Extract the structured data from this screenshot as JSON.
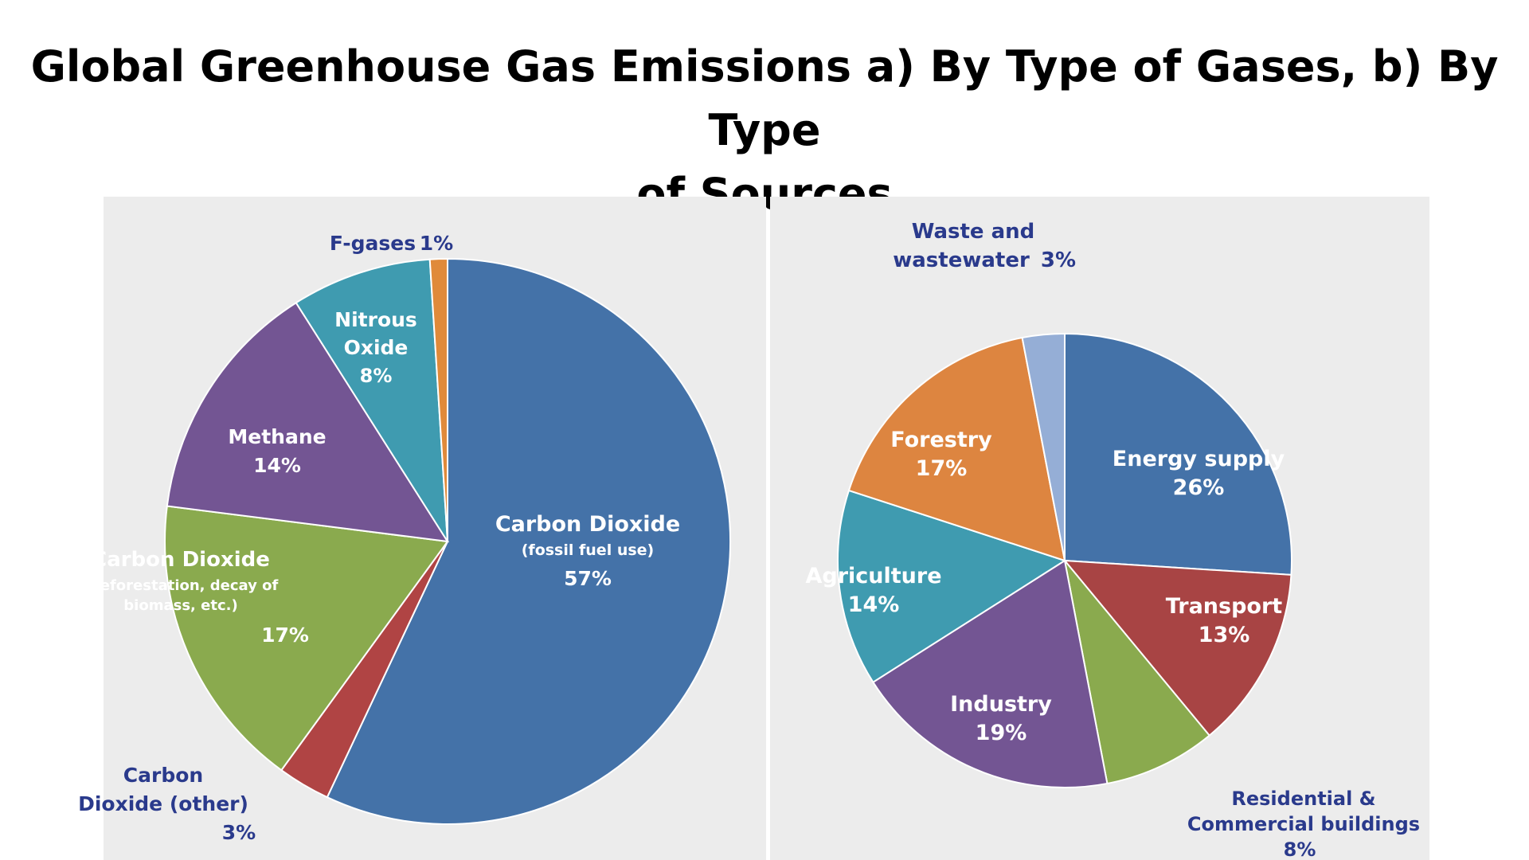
{
  "title_line1": "Global Greenhouse Gas Emissions a) By Type of Gases, b) By Type",
  "title_line2": "of Sources",
  "chart_data": [
    {
      "type": "pie",
      "title": "",
      "start_angle_deg": 0,
      "direction": "clockwise",
      "slices": [
        {
          "label": "Carbon Dioxide",
          "sublabel": "(fossil fuel use)",
          "value_label": "57%",
          "value": 57,
          "color": "#4472a8",
          "label_pos": "inside"
        },
        {
          "label": "Carbon Dioxide (other)",
          "sublabel": "",
          "value_label": "3%",
          "value": 3,
          "color": "#b04444",
          "label_pos": "outside"
        },
        {
          "label": "Carbon Dioxide",
          "sublabel": "(deforestation, decay of biomass, etc.)",
          "value_label": "17%",
          "value": 17,
          "color": "#8aaa4e",
          "label_pos": "inside"
        },
        {
          "label": "Methane",
          "sublabel": "",
          "value_label": "14%",
          "value": 14,
          "color": "#735593",
          "label_pos": "inside"
        },
        {
          "label": "Nitrous Oxide",
          "sublabel": "",
          "value_label": "8%",
          "value": 8,
          "color": "#3f9bb0",
          "label_pos": "inside"
        },
        {
          "label": "F-gases",
          "sublabel": "",
          "value_label": "1%",
          "value": 1,
          "color": "#e08a3a",
          "label_pos": "outside"
        }
      ]
    },
    {
      "type": "pie",
      "title": "",
      "start_angle_deg": 0,
      "direction": "clockwise",
      "slices": [
        {
          "label": "Energy supply",
          "sublabel": "",
          "value_label": "26%",
          "value": 26,
          "color": "#4472a8",
          "label_pos": "inside"
        },
        {
          "label": "Transport",
          "sublabel": "",
          "value_label": "13%",
          "value": 13,
          "color": "#a84444",
          "label_pos": "inside"
        },
        {
          "label": "Residential & Commercial buildings",
          "sublabel": "",
          "value_label": "8%",
          "value": 8,
          "color": "#8aaa4e",
          "label_pos": "outside"
        },
        {
          "label": "Industry",
          "sublabel": "",
          "value_label": "19%",
          "value": 19,
          "color": "#735593",
          "label_pos": "inside"
        },
        {
          "label": "Agriculture",
          "sublabel": "",
          "value_label": "14%",
          "value": 14,
          "color": "#3f9bb0",
          "label_pos": "inside"
        },
        {
          "label": "Forestry",
          "sublabel": "",
          "value_label": "17%",
          "value": 17,
          "color": "#dd8540",
          "label_pos": "inside"
        },
        {
          "label": "Waste and wastewater",
          "sublabel": "",
          "value_label": "3%",
          "value": 3,
          "color": "#95aed6",
          "label_pos": "outside"
        }
      ]
    }
  ]
}
